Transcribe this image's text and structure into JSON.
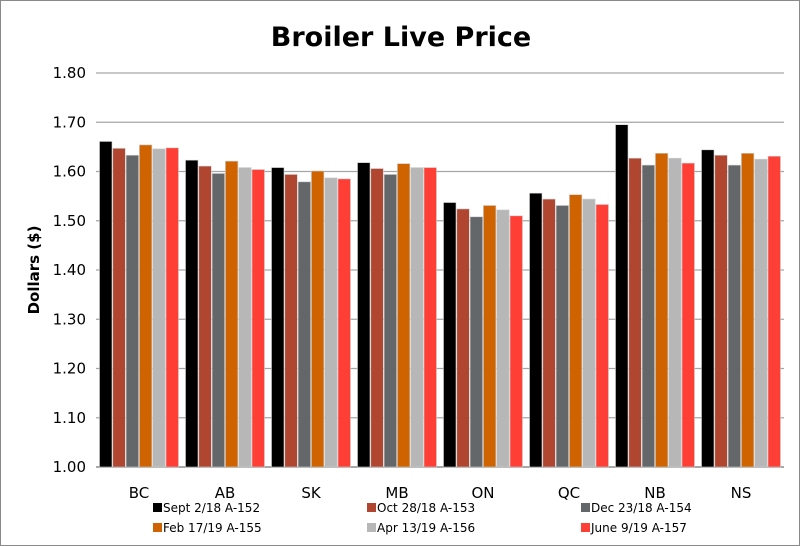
{
  "chart_data": {
    "type": "bar",
    "title": "Broiler Live Price",
    "xlabel": "",
    "ylabel": "Dollars ($)",
    "ylim": [
      1.0,
      1.8
    ],
    "yticks": [
      "1.00",
      "1.10",
      "1.20",
      "1.30",
      "1.40",
      "1.50",
      "1.60",
      "1.70",
      "1.80"
    ],
    "grid": true,
    "legend_position": "bottom",
    "categories": [
      "BC",
      "AB",
      "SK",
      "MB",
      "ON",
      "QC",
      "NB",
      "NS"
    ],
    "series": [
      {
        "name": "Sept 2/18 A-152",
        "color": "#000000",
        "values": [
          1.661,
          1.623,
          1.608,
          1.618,
          1.537,
          1.556,
          1.695,
          1.644
        ]
      },
      {
        "name": "Oct 28/18 A-153",
        "color": "#b04530",
        "values": [
          1.647,
          1.611,
          1.594,
          1.606,
          1.524,
          1.544,
          1.627,
          1.633
        ]
      },
      {
        "name": "Dec 23/18 A-154",
        "color": "#63676a",
        "values": [
          1.633,
          1.596,
          1.579,
          1.594,
          1.508,
          1.531,
          1.613,
          1.613
        ]
      },
      {
        "name": "Feb 17/19 A-155",
        "color": "#cf6300",
        "values": [
          1.654,
          1.621,
          1.601,
          1.616,
          1.531,
          1.553,
          1.637,
          1.637
        ]
      },
      {
        "name": "Apr 13/19 A-156",
        "color": "#b7b7b7",
        "values": [
          1.646,
          1.608,
          1.587,
          1.608,
          1.522,
          1.544,
          1.627,
          1.625
        ]
      },
      {
        "name": "June 9/19 A-157",
        "color": "#ff3e36",
        "values": [
          1.648,
          1.604,
          1.585,
          1.608,
          1.51,
          1.533,
          1.617,
          1.631
        ]
      }
    ]
  }
}
